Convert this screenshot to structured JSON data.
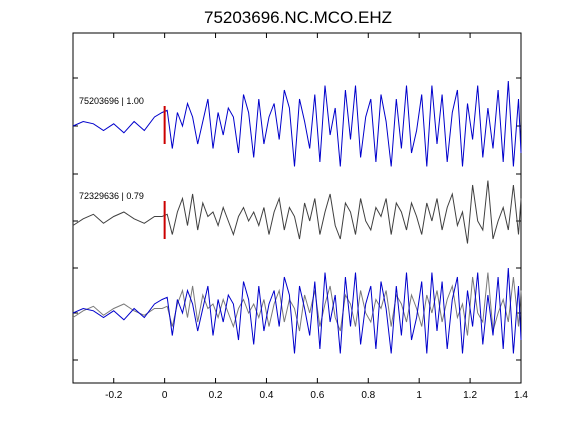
{
  "chart_data": {
    "type": "line",
    "title": "75203696.NC.MCO.EHZ",
    "xlabel": "",
    "ylabel": "",
    "xlim": [
      -0.36,
      1.4
    ],
    "xticks": [
      -0.2,
      0,
      0.2,
      0.4,
      0.6,
      0.8,
      1,
      1.2,
      1.4
    ],
    "xtick_labels": [
      "-0.2",
      "0",
      "0.2",
      "0.4",
      "0.6",
      "0.8",
      "1",
      "1.2",
      "1.4"
    ],
    "grid": false,
    "legend": "none",
    "marker_time": 0,
    "colors": {
      "primary": "#0000cc",
      "secondary": "#404040",
      "marker": "#cc0000",
      "overlay_secondary": "#7a7a7a"
    },
    "traces": [
      {
        "label": "75203696 | 1.00",
        "baseline": 1.0,
        "color": "#0000cc",
        "x": [
          -0.36,
          -0.32,
          -0.28,
          -0.24,
          -0.2,
          -0.16,
          -0.12,
          -0.08,
          -0.04,
          -0.01,
          0.01,
          0.03,
          0.05,
          0.07,
          0.09,
          0.11,
          0.13,
          0.15,
          0.17,
          0.19,
          0.21,
          0.23,
          0.25,
          0.27,
          0.29,
          0.31,
          0.33,
          0.35,
          0.37,
          0.39,
          0.41,
          0.43,
          0.45,
          0.47,
          0.49,
          0.51,
          0.53,
          0.55,
          0.57,
          0.59,
          0.61,
          0.63,
          0.65,
          0.67,
          0.69,
          0.71,
          0.73,
          0.75,
          0.77,
          0.79,
          0.81,
          0.83,
          0.85,
          0.87,
          0.89,
          0.91,
          0.93,
          0.95,
          0.97,
          0.99,
          1.01,
          1.03,
          1.05,
          1.07,
          1.09,
          1.11,
          1.13,
          1.15,
          1.17,
          1.19,
          1.21,
          1.23,
          1.25,
          1.27,
          1.29,
          1.31,
          1.33,
          1.35,
          1.37,
          1.39,
          1.4
        ],
        "y": [
          0.0,
          0.1,
          0.05,
          -0.1,
          0.05,
          -0.15,
          0.1,
          -0.1,
          0.2,
          0.3,
          0.35,
          -0.5,
          0.3,
          0.0,
          0.5,
          0.2,
          -0.4,
          0.1,
          0.6,
          -0.5,
          0.3,
          -0.2,
          0.4,
          0.2,
          -0.6,
          0.7,
          0.3,
          -0.7,
          0.6,
          -0.4,
          0.2,
          0.5,
          -0.3,
          0.8,
          0.4,
          -0.9,
          0.6,
          0.1,
          -0.5,
          0.7,
          -0.8,
          0.9,
          -0.2,
          0.4,
          -0.9,
          0.8,
          -0.3,
          0.9,
          -0.7,
          0.2,
          0.6,
          -0.8,
          0.7,
          0.1,
          -0.9,
          0.6,
          -0.5,
          0.9,
          -0.6,
          -0.1,
          0.7,
          -0.9,
          0.9,
          -0.4,
          0.7,
          -0.8,
          0.3,
          0.8,
          -0.9,
          0.5,
          -0.3,
          0.9,
          -0.7,
          0.4,
          -0.5,
          0.8,
          -0.8,
          1.0,
          -0.9,
          0.6,
          -0.6
        ]
      },
      {
        "label": "72329636 | 0.79",
        "baseline": 0.0,
        "color": "#404040",
        "x": [
          -0.36,
          -0.32,
          -0.28,
          -0.24,
          -0.2,
          -0.16,
          -0.12,
          -0.08,
          -0.04,
          -0.01,
          0.01,
          0.03,
          0.05,
          0.07,
          0.09,
          0.11,
          0.13,
          0.15,
          0.17,
          0.19,
          0.21,
          0.23,
          0.25,
          0.27,
          0.29,
          0.31,
          0.33,
          0.35,
          0.37,
          0.39,
          0.41,
          0.43,
          0.45,
          0.47,
          0.49,
          0.51,
          0.53,
          0.55,
          0.57,
          0.59,
          0.61,
          0.63,
          0.65,
          0.67,
          0.69,
          0.71,
          0.73,
          0.75,
          0.77,
          0.79,
          0.81,
          0.83,
          0.85,
          0.87,
          0.89,
          0.91,
          0.93,
          0.95,
          0.97,
          0.99,
          1.01,
          1.03,
          1.05,
          1.07,
          1.09,
          1.11,
          1.13,
          1.15,
          1.17,
          1.19,
          1.21,
          1.23,
          1.25,
          1.27,
          1.29,
          1.31,
          1.33,
          1.35,
          1.37,
          1.39,
          1.4
        ],
        "y": [
          -0.1,
          0.05,
          0.15,
          -0.05,
          0.1,
          0.2,
          0.05,
          -0.05,
          0.1,
          0.1,
          0.15,
          -0.3,
          0.2,
          0.5,
          -0.1,
          0.6,
          -0.2,
          0.4,
          0.1,
          0.2,
          -0.1,
          0.3,
          0.0,
          -0.3,
          0.1,
          0.3,
          0.0,
          0.2,
          -0.1,
          0.3,
          -0.3,
          0.2,
          0.5,
          -0.2,
          0.3,
          0.1,
          -0.4,
          0.4,
          0.0,
          0.5,
          -0.3,
          0.2,
          0.6,
          -0.1,
          -0.4,
          0.4,
          0.2,
          -0.3,
          0.5,
          0.0,
          -0.2,
          0.3,
          0.1,
          0.5,
          -0.3,
          0.4,
          0.2,
          -0.2,
          0.4,
          0.1,
          -0.3,
          0.4,
          0.0,
          0.5,
          -0.2,
          0.3,
          0.6,
          -0.1,
          0.2,
          -0.5,
          0.8,
          0.0,
          -0.2,
          0.9,
          -0.4,
          0.0,
          0.3,
          -0.2,
          0.8,
          -0.3,
          0.5
        ]
      }
    ]
  }
}
